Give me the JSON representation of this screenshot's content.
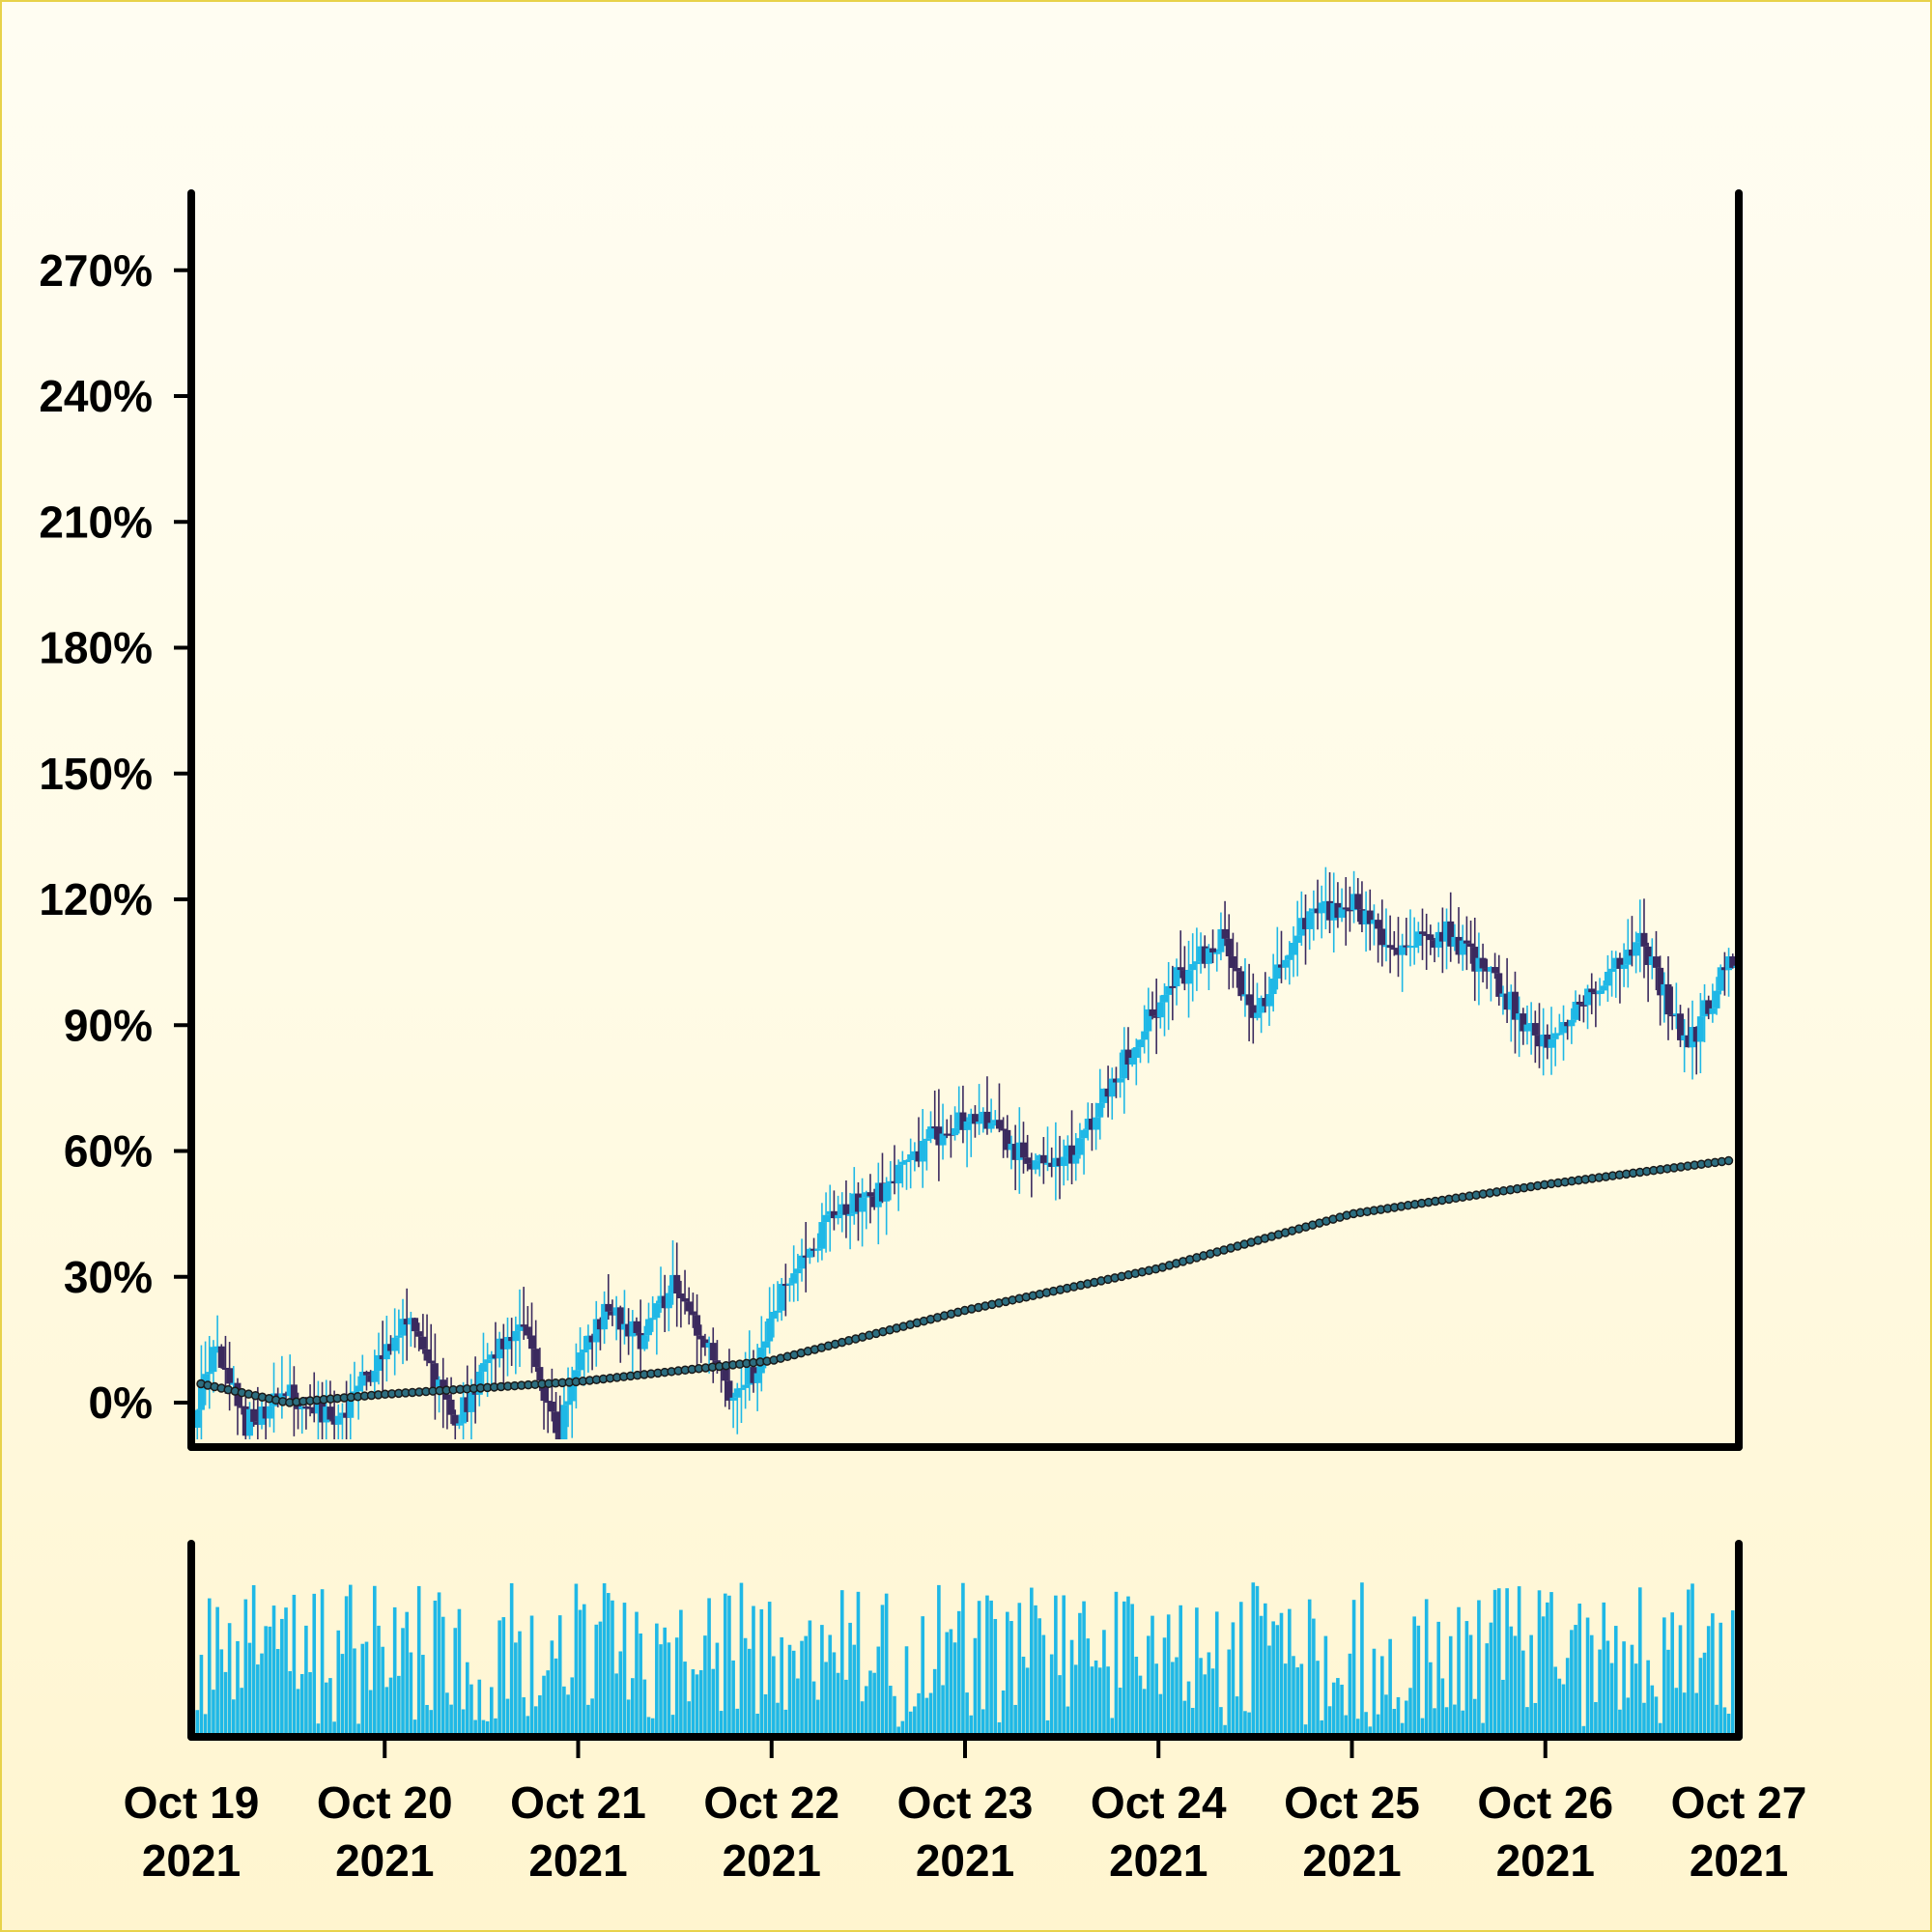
{
  "chart_data": {
    "type": "candlestick",
    "title": "",
    "xlabel": "",
    "ylabel": "",
    "ylim": [
      -7,
      290
    ],
    "y_ticks": [
      "0%",
      "30%",
      "60%",
      "90%",
      "120%",
      "150%",
      "180%",
      "210%",
      "240%",
      "270%"
    ],
    "y_tick_values": [
      0,
      30,
      60,
      90,
      120,
      150,
      180,
      210,
      240,
      270
    ],
    "x_ticks": [
      {
        "line1": "Oct 19",
        "line2": "2021"
      },
      {
        "line1": "Oct 20",
        "line2": "2021"
      },
      {
        "line1": "Oct 21",
        "line2": "2021"
      },
      {
        "line1": "Oct 22",
        "line2": "2021"
      },
      {
        "line1": "Oct 23",
        "line2": "2021"
      },
      {
        "line1": "Oct 24",
        "line2": "2021"
      },
      {
        "line1": "Oct 25",
        "line2": "2021"
      },
      {
        "line1": "Oct 26",
        "line2": "2021"
      },
      {
        "line1": "Oct 27",
        "line2": "2021"
      }
    ],
    "x_range": [
      "2021-10-19",
      "2021-10-27"
    ],
    "candle_interval": "30min (approx.)",
    "close_anchors": [
      {
        "date": "2021-10-19 00:00",
        "close": -8
      },
      {
        "date": "2021-10-19 03:00",
        "close": 13
      },
      {
        "date": "2021-10-19 07:00",
        "close": -5
      },
      {
        "date": "2021-10-19 12:00",
        "close": 2
      },
      {
        "date": "2021-10-19 18:00",
        "close": -5
      },
      {
        "date": "2021-10-20 03:00",
        "close": 20
      },
      {
        "date": "2021-10-20 09:00",
        "close": -5
      },
      {
        "date": "2021-10-20 14:00",
        "close": 12
      },
      {
        "date": "2021-10-20 17:00",
        "close": 20
      },
      {
        "date": "2021-10-20 22:00",
        "close": -8
      },
      {
        "date": "2021-10-21 00:00",
        "close": 10
      },
      {
        "date": "2021-10-21 04:00",
        "close": 23
      },
      {
        "date": "2021-10-21 08:00",
        "close": 15
      },
      {
        "date": "2021-10-21 12:00",
        "close": 28
      },
      {
        "date": "2021-10-21 19:00",
        "close": 2
      },
      {
        "date": "2021-10-21 22:00",
        "close": 7
      },
      {
        "date": "2021-10-22 02:00",
        "close": 28
      },
      {
        "date": "2021-10-22 08:00",
        "close": 45
      },
      {
        "date": "2021-10-22 14:00",
        "close": 50
      },
      {
        "date": "2021-10-22 20:00",
        "close": 63
      },
      {
        "date": "2021-10-23 02:00",
        "close": 70
      },
      {
        "date": "2021-10-23 08:00",
        "close": 57
      },
      {
        "date": "2021-10-23 14:00",
        "close": 60
      },
      {
        "date": "2021-10-23 20:00",
        "close": 82
      },
      {
        "date": "2021-10-24 02:00",
        "close": 100
      },
      {
        "date": "2021-10-24 08:00",
        "close": 110
      },
      {
        "date": "2021-10-24 12:00",
        "close": 92
      },
      {
        "date": "2021-10-24 18:00",
        "close": 114
      },
      {
        "date": "2021-10-25 00:00",
        "close": 120
      },
      {
        "date": "2021-10-25 06:00",
        "close": 108
      },
      {
        "date": "2021-10-25 12:00",
        "close": 112
      },
      {
        "date": "2021-10-25 18:00",
        "close": 100
      },
      {
        "date": "2021-10-26 00:00",
        "close": 85
      },
      {
        "date": "2021-10-26 06:00",
        "close": 97
      },
      {
        "date": "2021-10-26 12:00",
        "close": 110
      },
      {
        "date": "2021-10-26 18:00",
        "close": 85
      },
      {
        "date": "2021-10-26 23:00",
        "close": 105
      },
      {
        "date": "2021-10-27 00:00",
        "close": 106
      }
    ],
    "moving_average_anchors": [
      {
        "date": "2021-10-19 00:00",
        "value": 5
      },
      {
        "date": "2021-10-19 12:00",
        "value": 0
      },
      {
        "date": "2021-10-20 00:00",
        "value": 2
      },
      {
        "date": "2021-10-21 00:00",
        "value": 5
      },
      {
        "date": "2021-10-22 00:00",
        "value": 10
      },
      {
        "date": "2021-10-23 00:00",
        "value": 22
      },
      {
        "date": "2021-10-24 00:00",
        "value": 32
      },
      {
        "date": "2021-10-25 00:00",
        "value": 45
      },
      {
        "date": "2021-10-26 00:00",
        "value": 52
      },
      {
        "date": "2021-10-27 00:00",
        "value": 58
      }
    ],
    "volume_panel": true,
    "colors": {
      "up": "#1fb8e6",
      "down": "#3b2a5e",
      "moving_average_fill": "#2c6e80",
      "moving_average_edge": "#1a1a1a",
      "volume": "#1fb8e6",
      "axis": "#000000",
      "frame": "#e8d24a"
    },
    "grid": false,
    "legend": "none"
  }
}
